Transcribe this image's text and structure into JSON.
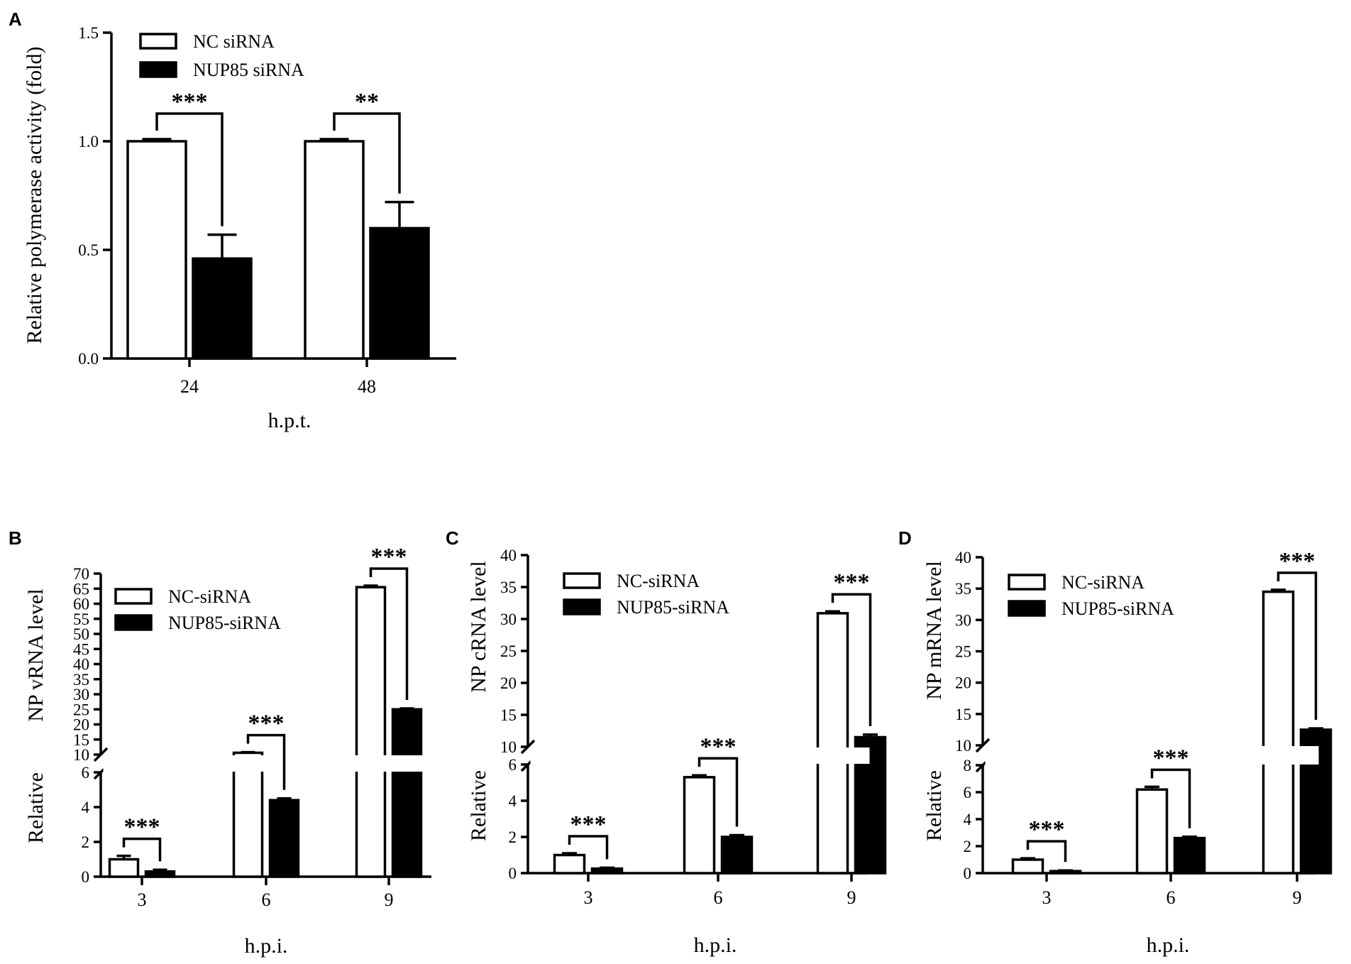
{
  "chart_data": [
    {
      "panel": "A",
      "type": "bar",
      "categories": [
        "24",
        "48"
      ],
      "series": [
        {
          "name": "NC siRNA",
          "values": [
            1.0,
            1.0
          ],
          "errors": [
            0.01,
            0.01
          ],
          "fill": "#ffffff"
        },
        {
          "name": "NUP85 siRNA",
          "values": [
            0.46,
            0.6
          ],
          "errors": [
            0.11,
            0.12
          ],
          "fill": "#000000"
        }
      ],
      "significance": [
        "***",
        "**"
      ],
      "xlabel": "h.p.t.",
      "ylabel": "Relative polymerase activity  (fold)",
      "ylim": [
        0,
        1.5
      ],
      "yticks": [
        "0.0",
        "0.5",
        "1.0",
        "1.5"
      ],
      "legend_position": "top-left"
    },
    {
      "panel": "B",
      "type": "bar",
      "categories": [
        "3",
        "6",
        "9"
      ],
      "series": [
        {
          "name": "NC-siRNA",
          "values": [
            1.0,
            10.6,
            65.5
          ],
          "errors": [
            0.2,
            0.2,
            0.5
          ],
          "fill": "#ffffff"
        },
        {
          "name": "NUP85-siRNA",
          "values": [
            0.3,
            4.4,
            25
          ],
          "errors": [
            0.1,
            0.1,
            0.3
          ],
          "fill": "#000000"
        }
      ],
      "significance": [
        "***",
        "***",
        "***"
      ],
      "xlabel": "h.p.i.",
      "ylabel_left": "Relative",
      "ylabel_right": "NP vRNA level",
      "axis_break": true,
      "lower_ylim": [
        0,
        6
      ],
      "upper_ylim": [
        10,
        70
      ],
      "lower_yticks": [
        "0",
        "2",
        "4",
        "6"
      ],
      "upper_yticks": [
        "10",
        "15",
        "20",
        "25",
        "30",
        "35",
        "40",
        "45",
        "50",
        "55",
        "60",
        "65",
        "70"
      ],
      "legend_position": "top-left"
    },
    {
      "panel": "C",
      "type": "bar",
      "categories": [
        "3",
        "6",
        "9"
      ],
      "series": [
        {
          "name": "NC-siRNA",
          "values": [
            1.0,
            5.3,
            30.9
          ],
          "errors": [
            0.1,
            0.1,
            0.3
          ],
          "fill": "#ffffff"
        },
        {
          "name": "NUP85-siRNA",
          "values": [
            0.25,
            2.0,
            11.5
          ],
          "errors": [
            0.05,
            0.1,
            0.4
          ],
          "fill": "#000000"
        }
      ],
      "significance": [
        "***",
        "***",
        "***"
      ],
      "xlabel": "h.p.i.",
      "ylabel_left": "Relative",
      "ylabel_right": "NP cRNA level",
      "axis_break": true,
      "lower_ylim": [
        0,
        6
      ],
      "upper_ylim": [
        10,
        40
      ],
      "lower_yticks": [
        "0",
        "2",
        "4",
        "6"
      ],
      "upper_yticks": [
        "10",
        "15",
        "20",
        "25",
        "30",
        "35",
        "40"
      ],
      "legend_position": "top-left"
    },
    {
      "panel": "D",
      "type": "bar",
      "categories": [
        "3",
        "6",
        "9"
      ],
      "series": [
        {
          "name": "NC-siRNA",
          "values": [
            1.0,
            6.2,
            34.5
          ],
          "errors": [
            0.1,
            0.2,
            0.3
          ],
          "fill": "#ffffff"
        },
        {
          "name": "NUP85-siRNA",
          "values": [
            0.15,
            2.6,
            12.5
          ],
          "errors": [
            0.05,
            0.1,
            0.2
          ],
          "fill": "#000000"
        }
      ],
      "significance": [
        "***",
        "***",
        "***"
      ],
      "xlabel": "h.p.i.",
      "ylabel_left": "Relative",
      "ylabel_right": "NP mRNA level",
      "axis_break": true,
      "lower_ylim": [
        0,
        8
      ],
      "upper_ylim": [
        10,
        40
      ],
      "lower_yticks": [
        "0",
        "2",
        "4",
        "6",
        "8"
      ],
      "upper_yticks": [
        "10",
        "15",
        "20",
        "25",
        "30",
        "35",
        "40"
      ],
      "legend_position": "top-left"
    }
  ]
}
